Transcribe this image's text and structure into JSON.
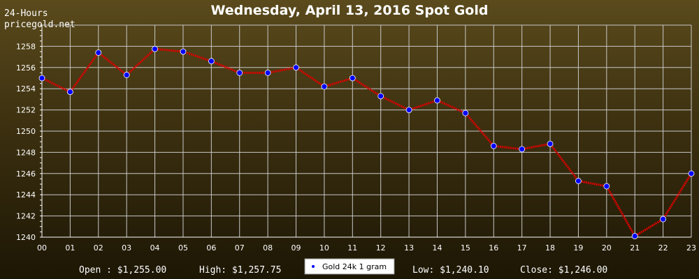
{
  "header": {
    "title": "Wednesday, April 13, 2016 Spot Gold",
    "period_label": "24-Hours",
    "source_label": "pricegold.net"
  },
  "stats": {
    "open": "Open : $1,255.00",
    "high": "High: $1,257.75",
    "low": "Low: $1,240.10",
    "close": "Close: $1,246.00"
  },
  "chart_data": {
    "type": "line",
    "title": "Wednesday, April 13, 2016 Spot Gold",
    "xlabel": "",
    "ylabel": "",
    "categories": [
      "00",
      "01",
      "02",
      "03",
      "04",
      "05",
      "06",
      "07",
      "08",
      "09",
      "10",
      "11",
      "12",
      "13",
      "14",
      "15",
      "16",
      "17",
      "18",
      "19",
      "20",
      "21",
      "22",
      "23"
    ],
    "series": [
      {
        "name": "Gold 24k 1 gram",
        "values": [
          1255.0,
          1253.7,
          1257.4,
          1255.3,
          1257.75,
          1257.5,
          1256.6,
          1255.5,
          1255.5,
          1256.0,
          1254.2,
          1255.0,
          1253.3,
          1252.0,
          1252.9,
          1251.7,
          1248.6,
          1248.3,
          1248.8,
          1245.3,
          1244.8,
          1240.1,
          1241.7,
          1246.0
        ]
      }
    ],
    "ylim": [
      1240,
      1260
    ],
    "yticks": [
      "1240",
      "1242",
      "1244",
      "1246",
      "1248",
      "1250",
      "1252",
      "1254",
      "1256",
      "1258"
    ],
    "grid": true,
    "legend_position": "bottom-center",
    "colors": {
      "line": "#e00000",
      "marker": "#0000ff",
      "grid": "#c8c8c8"
    }
  }
}
